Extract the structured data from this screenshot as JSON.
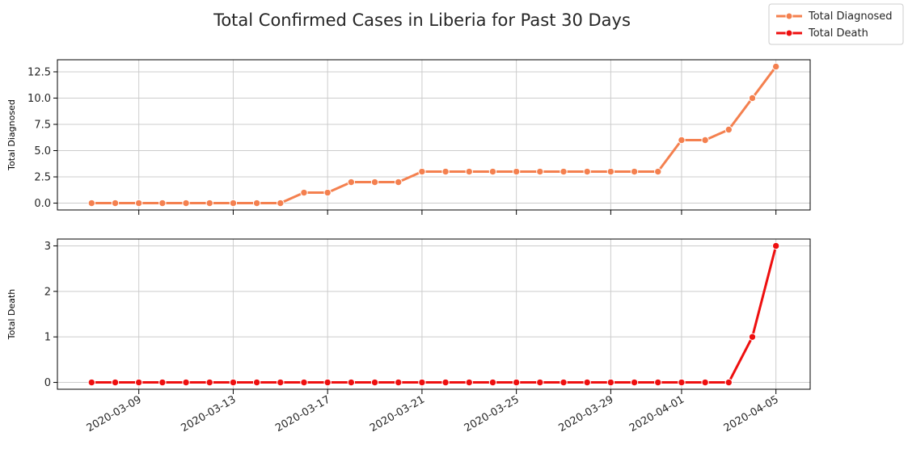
{
  "chart_data": {
    "title": "Total Confirmed Cases in Liberia for Past 30 Days",
    "legend": {
      "placement": "top-right",
      "entries": [
        "Total Diagnosed",
        "Total Death"
      ]
    },
    "type": "line",
    "x": [
      "2020-03-07",
      "2020-03-08",
      "2020-03-09",
      "2020-03-10",
      "2020-03-11",
      "2020-03-12",
      "2020-03-13",
      "2020-03-14",
      "2020-03-15",
      "2020-03-16",
      "2020-03-17",
      "2020-03-18",
      "2020-03-19",
      "2020-03-20",
      "2020-03-21",
      "2020-03-22",
      "2020-03-23",
      "2020-03-24",
      "2020-03-25",
      "2020-03-26",
      "2020-03-27",
      "2020-03-28",
      "2020-03-29",
      "2020-03-30",
      "2020-03-31",
      "2020-04-01",
      "2020-04-02",
      "2020-04-03",
      "2020-04-04",
      "2020-04-05"
    ],
    "xticks": [
      "2020-03-09",
      "2020-03-13",
      "2020-03-17",
      "2020-03-21",
      "2020-03-25",
      "2020-03-29",
      "2020-04-01",
      "2020-04-05"
    ],
    "grid": true,
    "panels": [
      {
        "ylabel": "Total Diagnosed",
        "ylim": [
          -0.65,
          13.65
        ],
        "yticks": [
          0.0,
          2.5,
          5.0,
          7.5,
          10.0,
          12.5
        ],
        "ytick_labels": [
          "0.0",
          "2.5",
          "5.0",
          "7.5",
          "10.0",
          "12.5"
        ],
        "series": [
          {
            "name": "Total Diagnosed",
            "color": "#f4804f",
            "values": [
              0,
              0,
              0,
              0,
              0,
              0,
              0,
              0,
              0,
              1,
              1,
              2,
              2,
              2,
              3,
              3,
              3,
              3,
              3,
              3,
              3,
              3,
              3,
              3,
              3,
              6,
              6,
              7,
              10,
              13
            ]
          }
        ]
      },
      {
        "ylabel": "Total Death",
        "ylim": [
          -0.15,
          3.15
        ],
        "yticks": [
          0,
          1,
          2,
          3
        ],
        "ytick_labels": [
          "0",
          "1",
          "2",
          "3"
        ],
        "series": [
          {
            "name": "Total Death",
            "color": "#ee0f0f",
            "values": [
              0,
              0,
              0,
              0,
              0,
              0,
              0,
              0,
              0,
              0,
              0,
              0,
              0,
              0,
              0,
              0,
              0,
              0,
              0,
              0,
              0,
              0,
              0,
              0,
              0,
              0,
              0,
              0,
              1,
              3
            ]
          }
        ]
      }
    ]
  }
}
